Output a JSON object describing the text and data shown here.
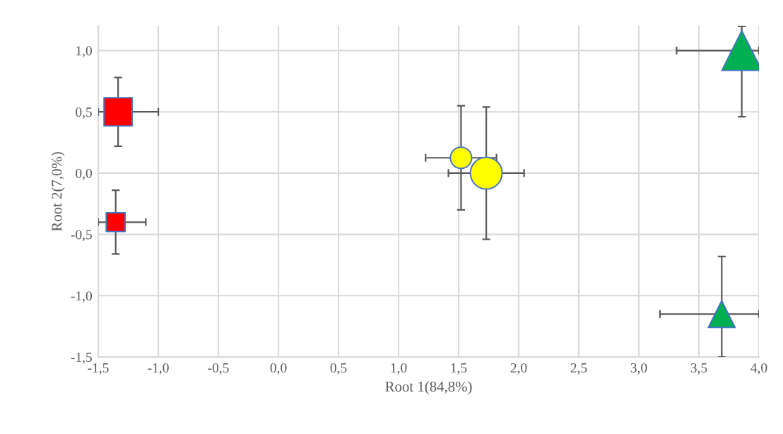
{
  "chart_data": {
    "type": "bubble",
    "xlabel": "Root 1(84,8%)",
    "ylabel": "Root 2(7,0%)",
    "xlim": [
      -1.5,
      4.0
    ],
    "ylim": [
      -1.5,
      1.2
    ],
    "xticks": [
      {
        "value": -1.5,
        "label": "-1,5"
      },
      {
        "value": -1.0,
        "label": "-1,0"
      },
      {
        "value": -0.5,
        "label": "-0,5"
      },
      {
        "value": 0.0,
        "label": "0,0"
      },
      {
        "value": 0.5,
        "label": "0,5"
      },
      {
        "value": 1.0,
        "label": "1,0"
      },
      {
        "value": 1.5,
        "label": "1,5"
      },
      {
        "value": 2.0,
        "label": "2,0"
      },
      {
        "value": 2.5,
        "label": "2,5"
      },
      {
        "value": 3.0,
        "label": "3,0"
      },
      {
        "value": 3.5,
        "label": "3,5"
      },
      {
        "value": 4.0,
        "label": "4,0"
      }
    ],
    "yticks": [
      {
        "value": -1.5,
        "label": "-1,5"
      },
      {
        "value": -1.0,
        "label": "-1,0"
      },
      {
        "value": -0.5,
        "label": "-0,5"
      },
      {
        "value": 0.0,
        "label": "0,0"
      },
      {
        "value": 0.5,
        "label": "0,5"
      },
      {
        "value": 1.0,
        "label": "1,0"
      }
    ],
    "grid": true,
    "legend": false,
    "series": [
      {
        "color": "#ff0000",
        "marker": "square",
        "x": [
          -1.335,
          -1.355
        ],
        "values": [
          0.5,
          -0.4
        ],
        "sizes": [
          1,
          0.45
        ],
        "xerrors": [
          [
            -1.5,
            -1.0
          ],
          [
            -1.5,
            -1.104
          ]
        ],
        "errors": [
          0.28,
          0.26
        ]
      },
      {
        "color": "#ffff00",
        "marker": "circle",
        "x": [
          1.52,
          1.73
        ],
        "values": [
          0.125,
          0.0
        ],
        "sizes": [
          0.45,
          1
        ],
        "xerrors": [
          0.295,
          0.315
        ],
        "errors": [
          0.425,
          0.54
        ]
      },
      {
        "color": "#00b050",
        "marker": "triangle",
        "x": [
          3.857,
          3.69
        ],
        "values": [
          1.0,
          -1.15
        ],
        "sizes": [
          1,
          0.45
        ],
        "xerrors": [
          [
            3.314,
            4.0
          ],
          [
            3.176,
            4.0
          ]
        ],
        "errors": [
          [
            0.46,
            1.2
          ],
          [
            -1.5,
            -0.68
          ]
        ]
      }
    ]
  }
}
